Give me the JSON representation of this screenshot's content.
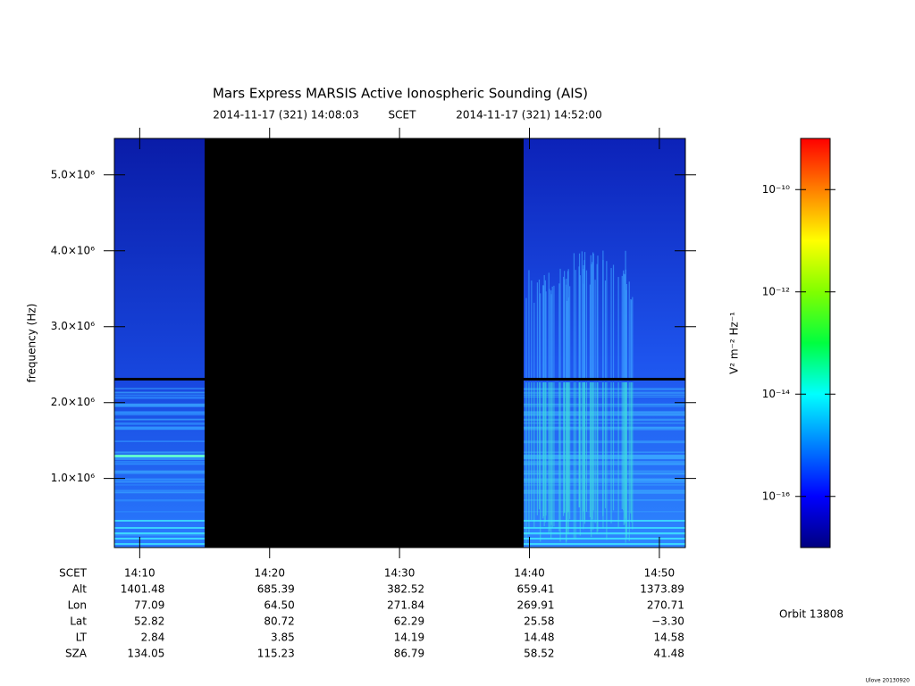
{
  "chart_data": {
    "type": "spectrogram",
    "title": "Mars Express MARSIS Active Ionospheric Sounding (AIS)",
    "start_time": "2014-11-17 (321) 14:08:03",
    "time_label": "SCET",
    "end_time": "2014-11-17 (321) 14:52:00",
    "y_label": "frequency (Hz)",
    "ylim": [
      90000,
      5480000
    ],
    "yticks": [
      {
        "value": 1000000,
        "label": "1.0×10⁶"
      },
      {
        "value": 2000000,
        "label": "2.0×10⁶"
      },
      {
        "value": 3000000,
        "label": "3.0×10⁶"
      },
      {
        "value": 4000000,
        "label": "4.0×10⁶"
      },
      {
        "value": 5000000,
        "label": "5.0×10⁶"
      }
    ],
    "colorbar_label": "V² m⁻² Hz⁻¹",
    "colorbar_log": true,
    "clim": [
      1e-17,
      1e-09
    ],
    "colorbar_ticks": [
      {
        "value": 1e-10,
        "label": "10⁻¹⁰"
      },
      {
        "value": 1e-12,
        "label": "10⁻¹²"
      },
      {
        "value": 1e-14,
        "label": "10⁻¹⁴"
      },
      {
        "value": 1e-16,
        "label": "10⁻¹⁶"
      }
    ],
    "colormap": [
      "#00007f",
      "#0000ff",
      "#0080ff",
      "#00ffff",
      "#00ff40",
      "#80ff00",
      "#ffff00",
      "#ff8000",
      "#ff0000"
    ],
    "ephemeris": [
      {
        "name": "SCET",
        "values": [
          "14:10",
          "14:20",
          "14:30",
          "14:40",
          "14:50"
        ]
      },
      {
        "name": "Alt",
        "values": [
          "1401.48",
          "685.39",
          "382.52",
          "659.41",
          "1373.89"
        ]
      },
      {
        "name": "Lon",
        "values": [
          "77.09",
          "64.50",
          "271.84",
          "269.91",
          "270.71"
        ]
      },
      {
        "name": "Lat",
        "values": [
          "52.82",
          "80.72",
          "62.29",
          "25.58",
          "−3.30"
        ]
      },
      {
        "name": "LT",
        "values": [
          "2.84",
          "3.85",
          "14.19",
          "14.48",
          "14.58"
        ]
      },
      {
        "name": "SZA",
        "values": [
          "134.05",
          "115.23",
          "86.79",
          "58.52",
          "41.48"
        ]
      }
    ],
    "orbit": "Orbit 13808",
    "footer": "Ulove 20130920"
  }
}
